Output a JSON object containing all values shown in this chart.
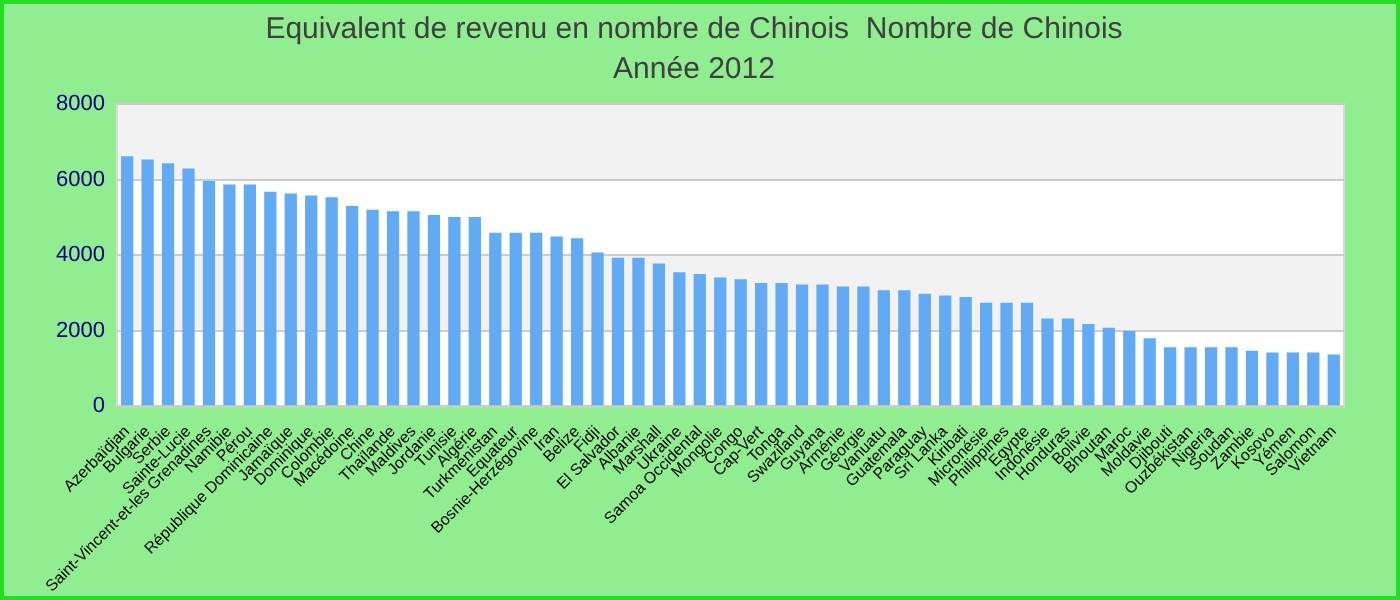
{
  "chart_data": {
    "type": "bar",
    "title": "Equivalent de revenu en nombre de Chinois  Nombre de Chinois",
    "subtitle": "Année 2012",
    "categories": [
      "Azerbaïdjan",
      "Bulgarie",
      "Serbie",
      "Sainte-Lucie",
      "Saint-Vincent-et-les Grenadines",
      "Namibie",
      "Pérou",
      "République Dominicaine",
      "Jamaïque",
      "Dominique",
      "Colombie",
      "Macédoine",
      "Chine",
      "Thaïlande",
      "Maldives",
      "Jordanie",
      "Tunisie",
      "Algérie",
      "Turkménistan",
      "Equateur",
      "Bosnie-Herzégovine",
      "Iran",
      "Belize",
      "Fidji",
      "El Salvador",
      "Albanie",
      "Marshall",
      "Ukraine",
      "Samoa Occidental",
      "Mongolie",
      "Congo",
      "Cap-Vert",
      "Tonga",
      "Swaziland",
      "Guyana",
      "Arménie",
      "Géorgie",
      "Vanuatu",
      "Guatemala",
      "Paraguay",
      "Sri Lanka",
      "Kiribati",
      "Micronésie",
      "Philippines",
      "Egypte",
      "Indonésie",
      "Honduras",
      "Bolivie",
      "Bhoutan",
      "Maroc",
      "Moldavie",
      "Djibouti",
      "Ouzbékistan",
      "Nigeria",
      "Soudan",
      "Zambie",
      "Kosovo",
      "Yémen",
      "Salomon",
      "Vietnam"
    ],
    "values": [
      6620,
      6530,
      6430,
      6290,
      5960,
      5870,
      5870,
      5680,
      5630,
      5580,
      5530,
      5300,
      5200,
      5160,
      5160,
      5060,
      5010,
      5010,
      4590,
      4590,
      4590,
      4490,
      4450,
      4070,
      3930,
      3930,
      3780,
      3550,
      3500,
      3410,
      3360,
      3260,
      3260,
      3220,
      3220,
      3170,
      3170,
      3070,
      3070,
      2980,
      2930,
      2890,
      2740,
      2740,
      2740,
      2320,
      2320,
      2180,
      2080,
      1990,
      1800,
      1560,
      1560,
      1560,
      1560,
      1470,
      1420,
      1420,
      1420,
      1370
    ],
    "color": "#62aaf4",
    "ylim": [
      0,
      8000
    ],
    "yticks": [
      0,
      2000,
      4000,
      6000,
      8000
    ],
    "grid": true
  }
}
